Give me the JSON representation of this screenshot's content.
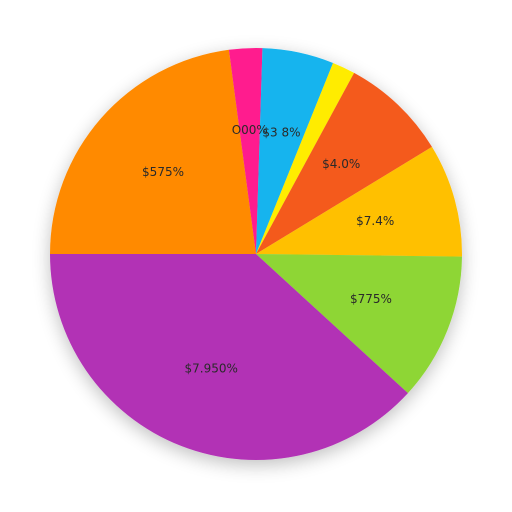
{
  "chart_data": {
    "type": "pie",
    "title": "",
    "slices": [
      {
        "label": "$575%",
        "value": 22.9,
        "color": "#ff8a00"
      },
      {
        "label": "O00%",
        "value": 2.6,
        "color": "#ff1f8e"
      },
      {
        "label": "$3 8%",
        "value": 5.6,
        "color": "#12b4ee"
      },
      {
        "label": "",
        "value": 1.8,
        "color": "#ffec00"
      },
      {
        "label": "$4.0%",
        "value": 8.4,
        "color": "#f45a1c"
      },
      {
        "label": "$7.4%",
        "value": 8.9,
        "color": "#ffc000"
      },
      {
        "label": "$775%",
        "value": 11.6,
        "color": "#8ed634"
      },
      {
        "label": "$7.950%",
        "value": 38.2,
        "color": "#b233b5"
      }
    ]
  }
}
